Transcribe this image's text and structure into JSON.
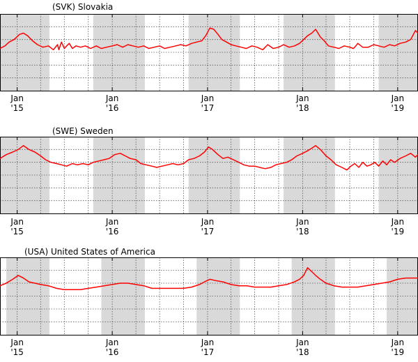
{
  "chart_data": [
    {
      "type": "line",
      "title": "(SVK) Slovakia",
      "xlabel": "",
      "ylabel": "",
      "x_tick_labels": [
        {
          "month": "Jan",
          "year": "'15"
        },
        {
          "month": "Jan",
          "year": "'16"
        },
        {
          "month": "Jan",
          "year": "'17"
        },
        {
          "month": "Jan",
          "year": "'18"
        },
        {
          "month": "Jan",
          "year": "'19"
        }
      ],
      "xlim": [
        "2014-10-27",
        "2019-03-20"
      ],
      "shaded_bands": [
        [
          "2014-10-27",
          "2015-05-05"
        ],
        [
          "2015-10-20",
          "2016-05-05"
        ],
        [
          "2016-10-20",
          "2017-05-05"
        ],
        [
          "2017-10-20",
          "2018-05-05"
        ],
        [
          "2018-10-20",
          "2019-03-20"
        ]
      ],
      "ylim": [
        0,
        6
      ],
      "grid": true,
      "series": [
        {
          "color": "#ff0000",
          "x": [
            "2014-10-27",
            "2014-11-15",
            "2014-12-01",
            "2014-12-20",
            "2015-01-10",
            "2015-01-25",
            "2015-02-10",
            "2015-03-01",
            "2015-03-20",
            "2015-04-10",
            "2015-05-01",
            "2015-05-20",
            "2015-06-05",
            "2015-06-10",
            "2015-06-20",
            "2015-07-01",
            "2015-07-10",
            "2015-07-20",
            "2015-08-01",
            "2015-08-15",
            "2015-09-01",
            "2015-09-20",
            "2015-10-10",
            "2015-11-01",
            "2015-11-20",
            "2015-12-10",
            "2016-01-01",
            "2016-01-20",
            "2016-02-10",
            "2016-03-01",
            "2016-03-20",
            "2016-04-10",
            "2016-05-01",
            "2016-05-20",
            "2016-06-10",
            "2016-07-01",
            "2016-07-20",
            "2016-08-10",
            "2016-09-01",
            "2016-09-20",
            "2016-10-10",
            "2016-11-01",
            "2016-11-20",
            "2016-12-10",
            "2016-12-25",
            "2017-01-10",
            "2017-01-25",
            "2017-02-10",
            "2017-02-25",
            "2017-03-15",
            "2017-04-01",
            "2017-04-20",
            "2017-05-10",
            "2017-05-30",
            "2017-06-20",
            "2017-07-10",
            "2017-08-01",
            "2017-08-20",
            "2017-09-10",
            "2017-10-01",
            "2017-10-20",
            "2017-11-10",
            "2017-12-01",
            "2017-12-20",
            "2018-01-05",
            "2018-01-20",
            "2018-02-05",
            "2018-02-20",
            "2018-03-10",
            "2018-03-25",
            "2018-04-10",
            "2018-05-01",
            "2018-05-20",
            "2018-06-10",
            "2018-07-01",
            "2018-07-15",
            "2018-07-20",
            "2018-08-01",
            "2018-08-20",
            "2018-09-10",
            "2018-10-01",
            "2018-10-20",
            "2018-11-10",
            "2018-12-01",
            "2018-12-20",
            "2019-01-10",
            "2019-02-01",
            "2019-02-20",
            "2019-03-10",
            "2019-03-20"
          ],
          "y": [
            3.3,
            3.5,
            3.8,
            4.0,
            4.4,
            4.5,
            4.3,
            3.9,
            3.6,
            3.4,
            3.5,
            3.2,
            3.6,
            3.2,
            3.8,
            3.3,
            3.5,
            3.7,
            3.3,
            3.5,
            3.4,
            3.5,
            3.3,
            3.5,
            3.3,
            3.4,
            3.5,
            3.6,
            3.4,
            3.6,
            3.5,
            3.4,
            3.5,
            3.3,
            3.4,
            3.5,
            3.3,
            3.4,
            3.5,
            3.6,
            3.5,
            3.7,
            3.8,
            3.9,
            4.3,
            4.9,
            4.8,
            4.4,
            4.0,
            3.8,
            3.6,
            3.5,
            3.4,
            3.3,
            3.5,
            3.4,
            3.2,
            3.6,
            3.3,
            3.4,
            3.6,
            3.4,
            3.5,
            3.7,
            4.0,
            4.3,
            4.5,
            4.8,
            4.2,
            3.9,
            3.5,
            3.4,
            3.3,
            3.5,
            3.4,
            3.3,
            3.4,
            3.7,
            3.4,
            3.4,
            3.6,
            3.5,
            3.4,
            3.6,
            3.5,
            3.7,
            3.8,
            4.0,
            4.7,
            4.5
          ]
        }
      ]
    },
    {
      "type": "line",
      "title": "(SWE) Sweden",
      "xlabel": "",
      "ylabel": "",
      "x_tick_labels": [
        {
          "month": "Jan",
          "year": "'15"
        },
        {
          "month": "Jan",
          "year": "'16"
        },
        {
          "month": "Jan",
          "year": "'17"
        },
        {
          "month": "Jan",
          "year": "'18"
        },
        {
          "month": "Jan",
          "year": "'19"
        }
      ],
      "xlim": [
        "2014-10-27",
        "2019-03-20"
      ],
      "shaded_bands": [
        [
          "2014-10-27",
          "2015-05-05"
        ],
        [
          "2015-10-20",
          "2016-05-05"
        ],
        [
          "2016-10-20",
          "2017-05-05"
        ],
        [
          "2017-10-20",
          "2018-05-05"
        ],
        [
          "2018-10-20",
          "2019-03-20"
        ]
      ],
      "ylim": [
        0,
        6
      ],
      "grid": true,
      "series": [
        {
          "color": "#ff0000",
          "x": [
            "2014-10-27",
            "2014-11-20",
            "2014-12-15",
            "2015-01-05",
            "2015-01-25",
            "2015-02-15",
            "2015-03-10",
            "2015-04-01",
            "2015-04-20",
            "2015-05-10",
            "2015-06-01",
            "2015-06-20",
            "2015-07-10",
            "2015-08-01",
            "2015-08-20",
            "2015-09-10",
            "2015-10-01",
            "2015-10-20",
            "2015-11-10",
            "2015-12-01",
            "2015-12-20",
            "2016-01-10",
            "2016-02-01",
            "2016-02-20",
            "2016-03-10",
            "2016-04-01",
            "2016-04-20",
            "2016-05-10",
            "2016-06-01",
            "2016-06-20",
            "2016-07-10",
            "2016-08-01",
            "2016-08-20",
            "2016-09-10",
            "2016-10-01",
            "2016-10-20",
            "2016-11-10",
            "2016-12-01",
            "2016-12-20",
            "2017-01-05",
            "2017-01-20",
            "2017-02-10",
            "2017-03-01",
            "2017-03-20",
            "2017-04-10",
            "2017-05-01",
            "2017-05-20",
            "2017-06-10",
            "2017-07-01",
            "2017-07-20",
            "2017-08-10",
            "2017-09-01",
            "2017-09-20",
            "2017-10-10",
            "2017-11-01",
            "2017-11-20",
            "2017-12-10",
            "2018-01-01",
            "2018-01-20",
            "2018-02-05",
            "2018-02-20",
            "2018-03-10",
            "2018-04-01",
            "2018-04-20",
            "2018-05-10",
            "2018-06-01",
            "2018-06-20",
            "2018-07-05",
            "2018-07-20",
            "2018-08-05",
            "2018-08-20",
            "2018-09-05",
            "2018-09-20",
            "2018-10-05",
            "2018-10-20",
            "2018-11-05",
            "2018-11-20",
            "2018-12-05",
            "2018-12-20",
            "2019-01-10",
            "2019-02-01",
            "2019-02-20",
            "2019-03-10",
            "2019-03-20"
          ],
          "y": [
            4.3,
            4.6,
            4.8,
            5.0,
            5.3,
            5.0,
            4.8,
            4.5,
            4.2,
            4.0,
            3.9,
            3.8,
            3.7,
            3.9,
            3.8,
            3.9,
            3.8,
            4.0,
            4.1,
            4.2,
            4.3,
            4.6,
            4.7,
            4.5,
            4.3,
            4.2,
            3.9,
            3.8,
            3.7,
            3.6,
            3.7,
            3.8,
            3.9,
            3.8,
            3.9,
            4.2,
            4.3,
            4.5,
            4.8,
            5.2,
            5.0,
            4.6,
            4.3,
            4.4,
            4.2,
            4.0,
            3.8,
            3.7,
            3.7,
            3.6,
            3.5,
            3.6,
            3.8,
            3.9,
            4.0,
            4.2,
            4.5,
            4.7,
            4.9,
            5.1,
            5.3,
            5.0,
            4.5,
            4.2,
            3.8,
            3.6,
            3.4,
            3.7,
            3.9,
            3.6,
            4.0,
            3.7,
            3.8,
            4.0,
            3.7,
            4.1,
            3.8,
            4.2,
            4.0,
            4.3,
            4.5,
            4.7,
            4.4,
            4.6
          ]
        }
      ]
    },
    {
      "type": "line",
      "title": "(USA) United States of America",
      "xlabel": "",
      "ylabel": "",
      "x_tick_labels": [
        {
          "month": "Jan",
          "year": "'15"
        },
        {
          "month": "Jan",
          "year": "'16"
        },
        {
          "month": "Jan",
          "year": "'17"
        },
        {
          "month": "Jan",
          "year": "'18"
        },
        {
          "month": "Jan",
          "year": "'19"
        }
      ],
      "xlim": [
        "2014-10-27",
        "2019-03-20"
      ],
      "shaded_bands": [
        [
          "2014-11-20",
          "2015-05-05"
        ],
        [
          "2015-11-20",
          "2016-05-05"
        ],
        [
          "2016-11-20",
          "2017-05-05"
        ],
        [
          "2017-11-20",
          "2018-05-05"
        ],
        [
          "2018-11-20",
          "2019-03-20"
        ]
      ],
      "ylim": [
        0,
        6
      ],
      "grid": true,
      "series": [
        {
          "color": "#ff0000",
          "x": [
            "2014-10-27",
            "2014-11-20",
            "2014-12-15",
            "2015-01-05",
            "2015-01-25",
            "2015-02-15",
            "2015-03-10",
            "2015-04-01",
            "2015-05-01",
            "2015-06-01",
            "2015-07-01",
            "2015-08-01",
            "2015-09-01",
            "2015-10-01",
            "2015-11-01",
            "2015-12-01",
            "2016-01-01",
            "2016-02-01",
            "2016-03-01",
            "2016-04-01",
            "2016-05-01",
            "2016-06-01",
            "2016-07-01",
            "2016-08-01",
            "2016-09-01",
            "2016-10-01",
            "2016-11-01",
            "2016-12-01",
            "2016-12-20",
            "2017-01-10",
            "2017-02-01",
            "2017-03-01",
            "2017-04-01",
            "2017-05-01",
            "2017-06-01",
            "2017-07-01",
            "2017-08-01",
            "2017-09-01",
            "2017-10-01",
            "2017-11-01",
            "2017-12-01",
            "2017-12-20",
            "2018-01-05",
            "2018-01-20",
            "2018-02-05",
            "2018-02-20",
            "2018-03-10",
            "2018-04-01",
            "2018-05-01",
            "2018-06-01",
            "2018-07-01",
            "2018-08-01",
            "2018-09-01",
            "2018-10-01",
            "2018-11-01",
            "2018-12-01",
            "2019-01-01",
            "2019-02-01",
            "2019-03-01",
            "2019-03-20"
          ],
          "y": [
            3.8,
            4.0,
            4.3,
            4.6,
            4.4,
            4.1,
            4.0,
            3.9,
            3.8,
            3.6,
            3.5,
            3.5,
            3.5,
            3.6,
            3.7,
            3.8,
            3.9,
            4.0,
            4.0,
            3.9,
            3.8,
            3.6,
            3.6,
            3.6,
            3.6,
            3.6,
            3.7,
            3.9,
            4.1,
            4.3,
            4.2,
            4.1,
            3.9,
            3.8,
            3.8,
            3.7,
            3.7,
            3.7,
            3.8,
            3.9,
            4.1,
            4.3,
            4.6,
            5.2,
            4.9,
            4.6,
            4.3,
            4.0,
            3.8,
            3.7,
            3.7,
            3.7,
            3.8,
            3.9,
            4.0,
            4.1,
            4.3,
            4.4,
            4.4,
            4.4
          ]
        }
      ]
    }
  ]
}
